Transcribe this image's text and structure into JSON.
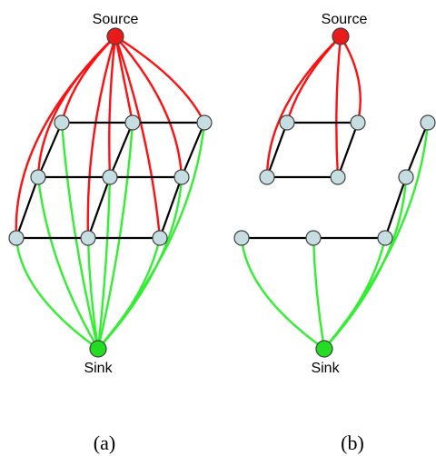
{
  "colors": {
    "source_fill": "#e81a1a",
    "sink_fill": "#22dd22",
    "node_fill": "#c6dde2",
    "source_edge": "#ff1010",
    "sink_edge": "#33ee33",
    "grid_edge": "#000000",
    "node_stroke": "#404040"
  },
  "panels": {
    "a": {
      "label": "(a)",
      "source_label": "Source",
      "sink_label": "Sink"
    },
    "b": {
      "label": "(b)",
      "source_label": "Source",
      "sink_label": "Sink"
    }
  }
}
